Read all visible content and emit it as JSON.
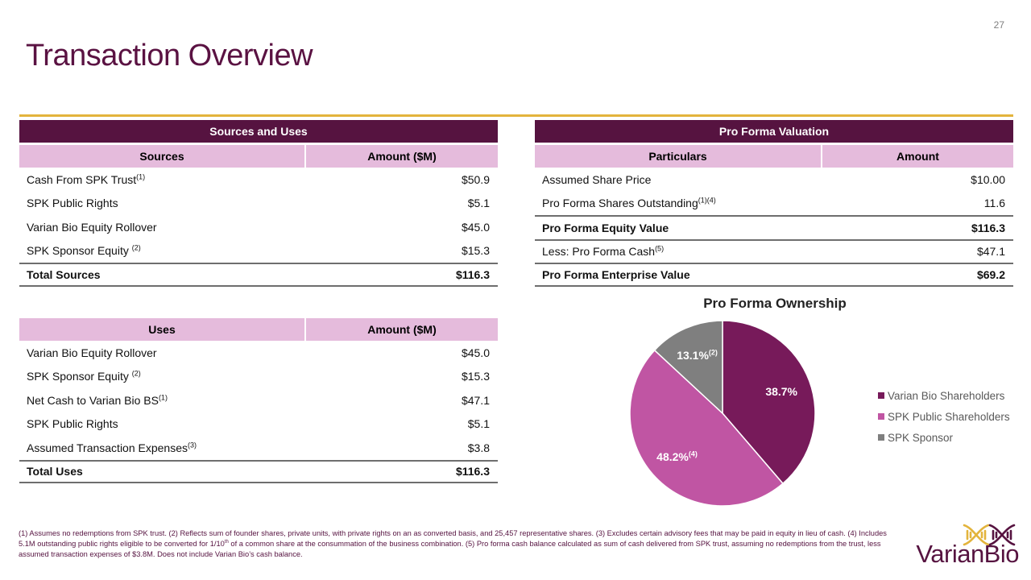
{
  "page_number": "27",
  "title": "Transaction Overview",
  "sources_and_uses": {
    "title": "Sources and Uses",
    "sources_header": "Sources",
    "amount_header": "Amount ($M)",
    "sources": [
      {
        "label": "Cash From SPK Trust",
        "sup": "(1)",
        "amount": "$50.9"
      },
      {
        "label": "SPK Public Rights",
        "sup": "",
        "amount": "$5.1"
      },
      {
        "label": "Varian Bio Equity Rollover",
        "sup": "",
        "amount": "$45.0"
      },
      {
        "label": "SPK Sponsor Equity ",
        "sup": "(2)",
        "amount": "$15.3"
      }
    ],
    "sources_total": {
      "label": "Total Sources",
      "amount": "$116.3"
    },
    "uses_header": "Uses",
    "uses_amount_header": "Amount ($M)",
    "uses": [
      {
        "label": "Varian Bio Equity Rollover",
        "sup": "",
        "amount": "$45.0"
      },
      {
        "label": "SPK Sponsor Equity ",
        "sup": "(2)",
        "amount": "$15.3"
      },
      {
        "label": "Net Cash to Varian Bio BS",
        "sup": "(1)",
        "amount": "$47.1"
      },
      {
        "label": "SPK Public Rights",
        "sup": "",
        "amount": "$5.1"
      },
      {
        "label": "Assumed Transaction Expenses",
        "sup": "(3)",
        "amount": "$3.8"
      }
    ],
    "uses_total": {
      "label": "Total Uses",
      "amount": "$116.3"
    }
  },
  "valuation": {
    "title": "Pro Forma Valuation",
    "col1_header": "Particulars",
    "col2_header": "Amount",
    "rows": [
      {
        "label": "Assumed Share Price",
        "sup": "",
        "amount": "$10.00"
      },
      {
        "label": "Pro Forma Shares Outstanding",
        "sup": "(1)(4)",
        "amount": "11.6"
      },
      {
        "label": "Pro Forma Equity Value",
        "sup": "",
        "amount": "$116.3"
      },
      {
        "label": "Less: Pro Forma Cash",
        "sup": "(5)",
        "amount": "$47.1"
      },
      {
        "label": "Pro Forma Enterprise Value",
        "sup": "",
        "amount": "$69.2"
      }
    ]
  },
  "chart_data": {
    "type": "pie",
    "title": "Pro Forma Ownership",
    "categories": [
      "Varian Bio Shareholders",
      "SPK Public Shareholders",
      "SPK Sponsor"
    ],
    "values": [
      38.7,
      48.2,
      13.1
    ],
    "labels": [
      "38.7%",
      "48.2%",
      "13.1%"
    ],
    "label_sups": [
      "",
      "(4)",
      "(2)"
    ],
    "colors": [
      "#771a5a",
      "#c055a3",
      "#7f7f7f"
    ],
    "legend_position": "right"
  },
  "footnote": "(1) Assumes no redemptions from SPK trust. (2) Reflects sum of founder shares, private units, with private rights on an as converted basis, and 25,457 representative shares. (3) Excludes certain advisory fees that may be paid in equity in lieu of cash. (4) Includes 5.1M outstanding public rights eligible to be converted for 1/10",
  "footnote_sup": "th",
  "footnote_rest": " of a common share at the consummation of the business combination. (5) Pro forma cash balance calculated as sum of cash delivered from SPK trust, assuming no redemptions from the trust, less assumed transaction expenses of $3.8M. Does not include Varian Bio’s cash balance.",
  "logo": {
    "text": "VarianBio",
    "gold": "#e3b43c",
    "purple": "#561340"
  }
}
